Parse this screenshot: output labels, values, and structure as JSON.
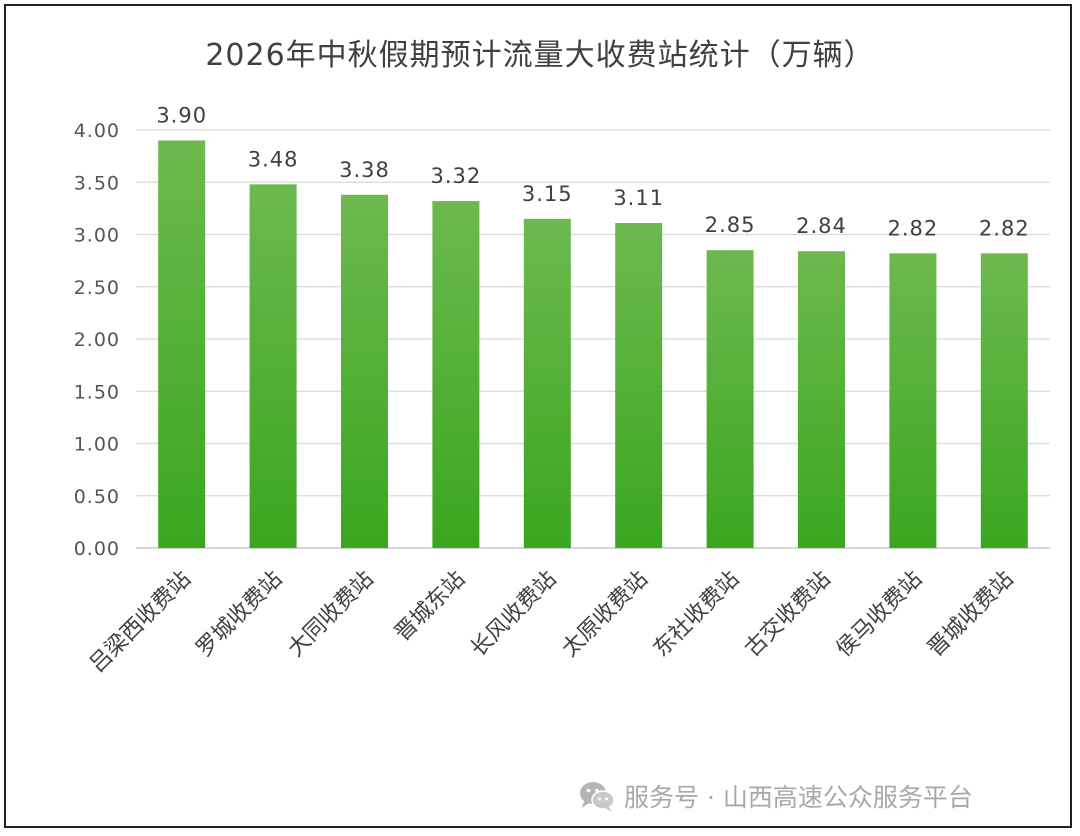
{
  "chart_data": {
    "type": "bar",
    "title": "2026年中秋假期预计流量大收费站统计（万辆）",
    "categories": [
      "吕梁西收费站",
      "罗城收费站",
      "大同收费站",
      "晋城东站",
      "长风收费站",
      "太原收费站",
      "东社收费站",
      "古交收费站",
      "侯马收费站",
      "晋城收费站"
    ],
    "values": [
      3.9,
      3.48,
      3.38,
      3.32,
      3.15,
      3.11,
      2.85,
      2.84,
      2.82,
      2.82
    ],
    "data_labels": [
      "3.90",
      "3.48",
      "3.38",
      "3.32",
      "3.15",
      "3.11",
      "2.85",
      "2.84",
      "2.82",
      "2.82"
    ],
    "yticks": [
      "0.00",
      "0.50",
      "1.00",
      "1.50",
      "2.00",
      "2.50",
      "3.00",
      "3.50",
      "4.00"
    ],
    "ylim": [
      0,
      4
    ],
    "xlabel": "",
    "ylabel": "",
    "grid": true,
    "legend": "none",
    "colors": {
      "bar_top": "#6db94f",
      "bar_bottom": "#3aa61f",
      "grid": "#d9d9d9"
    }
  },
  "watermark": {
    "icon": "wechat-icon",
    "text": "服务号 · 山西高速公众服务平台"
  }
}
